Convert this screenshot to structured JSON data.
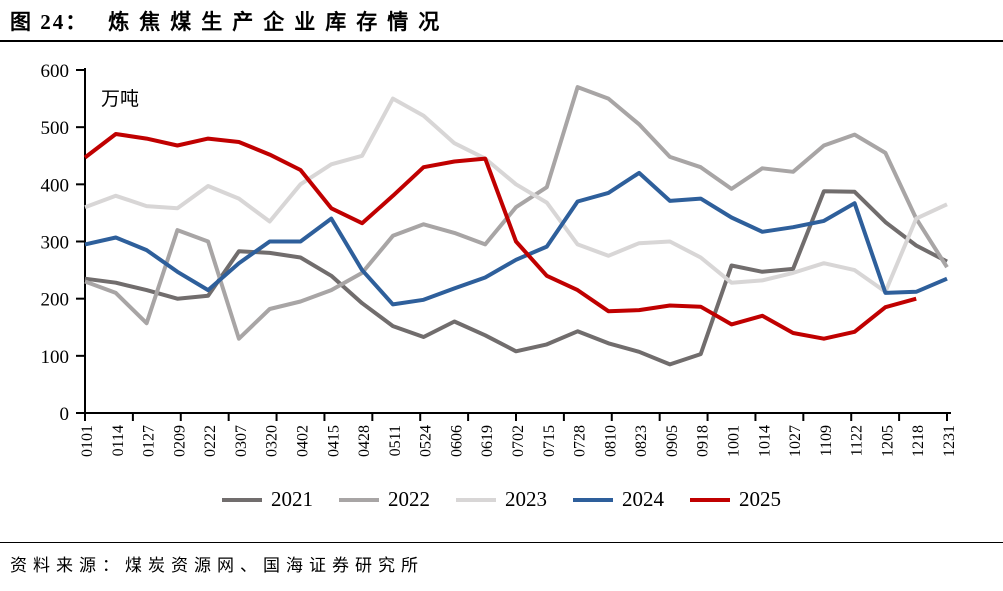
{
  "header": {
    "label": "图 24：",
    "title": "炼焦煤生产企业库存情况"
  },
  "chart_data": {
    "type": "line",
    "title": "炼焦煤生产企业库存情况",
    "unit_label": "万吨",
    "xlabel": "",
    "ylabel": "万吨",
    "ylim": [
      0,
      600
    ],
    "ytick_step": 100,
    "grid": false,
    "legend_position": "bottom",
    "categories": [
      "0101",
      "0114",
      "0127",
      "0209",
      "0222",
      "0307",
      "0320",
      "0402",
      "0415",
      "0428",
      "0511",
      "0524",
      "0606",
      "0619",
      "0702",
      "0715",
      "0728",
      "0810",
      "0823",
      "0905",
      "0918",
      "1001",
      "1014",
      "1027",
      "1109",
      "1122",
      "1205",
      "1218",
      "1231"
    ],
    "series": [
      {
        "name": "2021",
        "color": "#716d6d",
        "values": [
          235,
          228,
          215,
          200,
          205,
          283,
          280,
          272,
          240,
          192,
          152,
          133,
          160,
          136,
          108,
          120,
          143,
          122,
          107,
          85,
          103,
          258,
          247,
          252,
          388,
          387,
          334,
          293,
          265
        ]
      },
      {
        "name": "2022",
        "color": "#a8a5a5",
        "values": [
          230,
          210,
          157,
          320,
          300,
          130,
          182,
          195,
          215,
          245,
          310,
          330,
          315,
          295,
          360,
          395,
          570,
          550,
          505,
          448,
          430,
          392,
          428,
          422,
          468,
          487,
          455,
          340,
          255
        ]
      },
      {
        "name": "2023",
        "color": "#d8d6d6",
        "values": [
          360,
          380,
          362,
          358,
          397,
          375,
          335,
          400,
          435,
          450,
          550,
          520,
          472,
          445,
          400,
          368,
          295,
          275,
          297,
          300,
          272,
          228,
          232,
          245,
          262,
          250,
          212,
          340,
          365
        ]
      },
      {
        "name": "2024",
        "color": "#2e5f9b",
        "values": [
          295,
          307,
          285,
          247,
          215,
          262,
          300,
          300,
          340,
          250,
          190,
          198,
          218,
          237,
          268,
          291,
          370,
          385,
          420,
          371,
          375,
          342,
          317,
          325,
          336,
          367,
          210,
          212,
          235
        ]
      },
      {
        "name": "2025",
        "color": "#c00000",
        "values": [
          447,
          488,
          480,
          468,
          480,
          474,
          452,
          425,
          358,
          332,
          380,
          430,
          440,
          445,
          300,
          240,
          215,
          178,
          180,
          188,
          186,
          155,
          170,
          140,
          130,
          142,
          185,
          200,
          null
        ]
      }
    ]
  },
  "footer": {
    "source": "资料来源：煤炭资源网、国海证券研究所"
  }
}
